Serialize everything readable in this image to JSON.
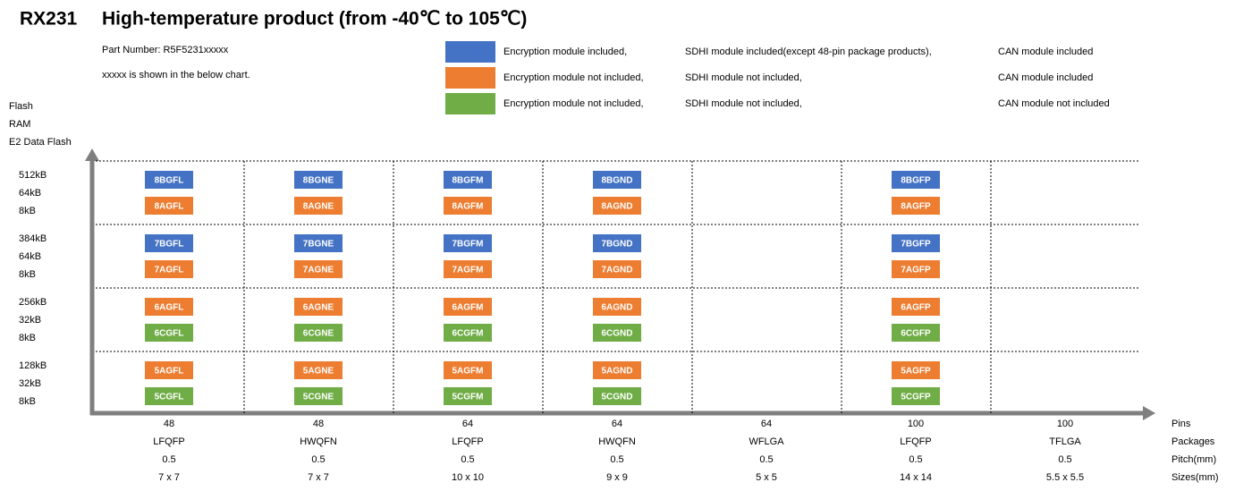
{
  "header": {
    "product": "RX231",
    "title": "High-temperature product (from -40℃ to 105℃)",
    "part_number": "Part Number: R5F5231xxxxx",
    "note": "xxxxx is shown in the below chart."
  },
  "legend": [
    {
      "color": "#4472c4",
      "encryption": "Encryption module included,",
      "sdhi": "SDHI module included(except 48-pin package products),",
      "can": "CAN module included"
    },
    {
      "color": "#ed7d31",
      "encryption": "Encryption module not included,",
      "sdhi": "SDHI module not included,",
      "can": "CAN module included"
    },
    {
      "color": "#70ad47",
      "encryption": "Encryption module not included,",
      "sdhi": "SDHI module not included,",
      "can": "CAN module not included"
    }
  ],
  "y_axis_labels": [
    "Flash",
    "RAM",
    "E2 Data Flash"
  ],
  "x_axis_labels": [
    "Pins",
    "Packages",
    "Pitch(mm)",
    "Sizes(mm)"
  ],
  "columns": [
    {
      "pins": "48",
      "package": "LFQFP",
      "pitch": "0.5",
      "size": "7 x 7"
    },
    {
      "pins": "48",
      "package": "HWQFN",
      "pitch": "0.5",
      "size": "7 x 7"
    },
    {
      "pins": "64",
      "package": "LFQFP",
      "pitch": "0.5",
      "size": "10 x 10"
    },
    {
      "pins": "64",
      "package": "HWQFN",
      "pitch": "0.5",
      "size": "9 x 9"
    },
    {
      "pins": "64",
      "package": "WFLGA",
      "pitch": "0.5",
      "size": "5 x 5"
    },
    {
      "pins": "100",
      "package": "LFQFP",
      "pitch": "0.5",
      "size": "14 x 14"
    },
    {
      "pins": "100",
      "package": "TFLGA",
      "pitch": "0.5",
      "size": "5.5 x 5.5"
    }
  ],
  "rows": [
    {
      "labels": [
        "512kB",
        "64kB",
        "8kB"
      ],
      "cells": [
        [
          {
            "label": "8BGFL",
            "color": "#4472c4"
          },
          {
            "label": "8AGFL",
            "color": "#ed7d31"
          }
        ],
        [
          {
            "label": "8BGNE",
            "color": "#4472c4"
          },
          {
            "label": "8AGNE",
            "color": "#ed7d31"
          }
        ],
        [
          {
            "label": "8BGFM",
            "color": "#4472c4"
          },
          {
            "label": "8AGFM",
            "color": "#ed7d31"
          }
        ],
        [
          {
            "label": "8BGND",
            "color": "#4472c4"
          },
          {
            "label": "8AGND",
            "color": "#ed7d31"
          }
        ],
        null,
        [
          {
            "label": "8BGFP",
            "color": "#4472c4"
          },
          {
            "label": "8AGFP",
            "color": "#ed7d31"
          }
        ],
        null
      ]
    },
    {
      "labels": [
        "384kB",
        "64kB",
        "8kB"
      ],
      "cells": [
        [
          {
            "label": "7BGFL",
            "color": "#4472c4"
          },
          {
            "label": "7AGFL",
            "color": "#ed7d31"
          }
        ],
        [
          {
            "label": "7BGNE",
            "color": "#4472c4"
          },
          {
            "label": "7AGNE",
            "color": "#ed7d31"
          }
        ],
        [
          {
            "label": "7BGFM",
            "color": "#4472c4"
          },
          {
            "label": "7AGFM",
            "color": "#ed7d31"
          }
        ],
        [
          {
            "label": "7BGND",
            "color": "#4472c4"
          },
          {
            "label": "7AGND",
            "color": "#ed7d31"
          }
        ],
        null,
        [
          {
            "label": "7BGFP",
            "color": "#4472c4"
          },
          {
            "label": "7AGFP",
            "color": "#ed7d31"
          }
        ],
        null
      ]
    },
    {
      "labels": [
        "256kB",
        "32kB",
        "8kB"
      ],
      "cells": [
        [
          {
            "label": "6AGFL",
            "color": "#ed7d31"
          },
          {
            "label": "6CGFL",
            "color": "#70ad47"
          }
        ],
        [
          {
            "label": "6AGNE",
            "color": "#ed7d31"
          },
          {
            "label": "6CGNE",
            "color": "#70ad47"
          }
        ],
        [
          {
            "label": "6AGFM",
            "color": "#ed7d31"
          },
          {
            "label": "6CGFM",
            "color": "#70ad47"
          }
        ],
        [
          {
            "label": "6AGND",
            "color": "#ed7d31"
          },
          {
            "label": "6CGND",
            "color": "#70ad47"
          }
        ],
        null,
        [
          {
            "label": "6AGFP",
            "color": "#ed7d31"
          },
          {
            "label": "6CGFP",
            "color": "#70ad47"
          }
        ],
        null
      ]
    },
    {
      "labels": [
        "128kB",
        "32kB",
        "8kB"
      ],
      "cells": [
        [
          {
            "label": "5AGFL",
            "color": "#ed7d31"
          },
          {
            "label": "5CGFL",
            "color": "#70ad47"
          }
        ],
        [
          {
            "label": "5AGNE",
            "color": "#ed7d31"
          },
          {
            "label": "5CGNE",
            "color": "#70ad47"
          }
        ],
        [
          {
            "label": "5AGFM",
            "color": "#ed7d31"
          },
          {
            "label": "5CGFM",
            "color": "#70ad47"
          }
        ],
        [
          {
            "label": "5AGND",
            "color": "#ed7d31"
          },
          {
            "label": "5CGND",
            "color": "#70ad47"
          }
        ],
        null,
        [
          {
            "label": "5AGFP",
            "color": "#ed7d31"
          },
          {
            "label": "5CGFP",
            "color": "#70ad47"
          }
        ],
        null
      ]
    }
  ]
}
